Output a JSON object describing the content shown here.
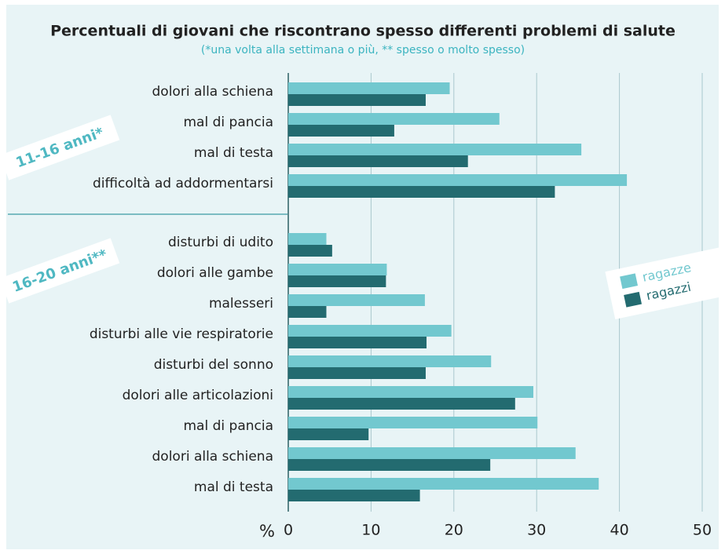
{
  "chart_data": {
    "type": "bar",
    "orientation": "horizontal",
    "title": "Percentuali di giovani che riscontrano spesso differenti problemi di salute",
    "subtitle": "(*una volta alla settimana o più, ** spesso o molto spesso)",
    "groups": [
      {
        "label": "11-16 anni*",
        "categories": [
          "dolori alla schiena",
          "mal di pancia",
          "mal di testa",
          "difficoltà ad addormentarsi"
        ]
      },
      {
        "label": "16-20 anni**",
        "categories": [
          "disturbi di udito",
          "dolori alle gambe",
          "malesseri",
          "disturbi alle vie respiratorie",
          "disturbi del sonno",
          "dolori alle articolazioni",
          "mal di pancia",
          "dolori alla schiena",
          "mal di testa"
        ]
      }
    ],
    "series": [
      {
        "name": "ragazze",
        "color": "#72c8cf",
        "values": [
          19.5,
          25.5,
          35.4,
          40.9,
          4.6,
          11.9,
          16.5,
          19.7,
          24.5,
          29.6,
          30.1,
          34.7,
          37.5
        ]
      },
      {
        "name": "ragazzi",
        "color": "#236b70",
        "values": [
          16.6,
          12.8,
          21.7,
          32.2,
          5.3,
          11.8,
          4.6,
          16.7,
          16.6,
          27.4,
          9.7,
          24.4,
          15.9
        ]
      }
    ],
    "xlabel": "%",
    "xlim": [
      0,
      50
    ],
    "xticks": [
      0,
      10,
      20,
      30,
      40,
      50
    ],
    "grid": true
  }
}
